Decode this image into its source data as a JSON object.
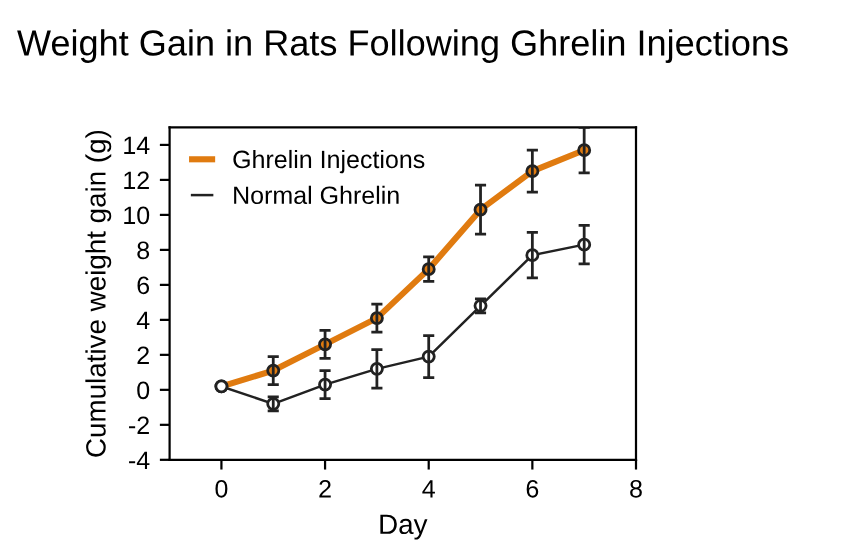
{
  "chart_data": {
    "type": "line",
    "title": "Weight Gain in Rats Following Ghrelin Injections",
    "xlabel": "Day",
    "ylabel": "Cumulative weight gain (g)",
    "x": [
      0,
      1,
      2,
      3,
      4,
      5,
      6,
      7
    ],
    "series": [
      {
        "name": "Ghrelin Injections",
        "color": "#e07b10",
        "values": [
          0.2,
          1.1,
          2.6,
          4.1,
          6.9,
          10.3,
          12.5,
          13.7
        ],
        "errors": [
          null,
          0.8,
          0.8,
          0.8,
          0.7,
          1.4,
          1.2,
          1.3
        ]
      },
      {
        "name": "Normal Ghrelin",
        "color": "#222222",
        "values": [
          0.2,
          -0.8,
          0.3,
          1.2,
          1.9,
          4.8,
          7.7,
          8.3
        ],
        "errors": [
          null,
          0.4,
          0.8,
          1.1,
          1.2,
          0.4,
          1.3,
          1.1
        ]
      }
    ],
    "xlim": [
      -1,
      8
    ],
    "ylim": [
      -4,
      15
    ],
    "xticks": [
      0,
      2,
      4,
      6,
      8
    ],
    "yticks": [
      -4,
      -2,
      0,
      2,
      4,
      6,
      8,
      10,
      12,
      14
    ],
    "grid": false,
    "legend": "top left",
    "marker": "circle"
  }
}
